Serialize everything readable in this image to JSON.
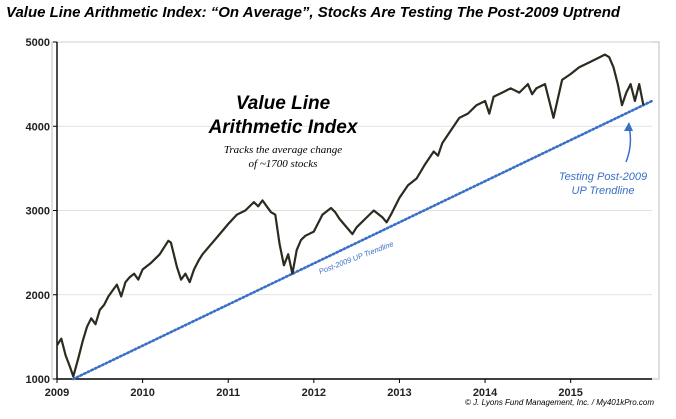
{
  "title": "Value Line Arithmetic Index: “On Average”, Stocks Are Testing The Post-2009 Uptrend",
  "annotations": {
    "main_label_line1": "Value Line",
    "main_label_line2": "Arithmetic Index",
    "sub_label_line1": "Tracks the average change",
    "sub_label_line2": "of ~1700 stocks",
    "test_label_line1": "Testing Post-2009",
    "test_label_line2": "UP Trendline",
    "trendline_label": "Post-2009 UP Trendline",
    "credit": "© J. Lyons Fund Management, Inc. / My401kPro.com"
  },
  "colors": {
    "series": "#2b2b1f",
    "trendline": "#3a6fc7",
    "grid": "#d9d9d9",
    "axis": "#000000"
  },
  "chart_data": {
    "type": "line",
    "title": "Value Line Arithmetic Index: “On Average”, Stocks Are Testing The Post-2009 Uptrend",
    "xlabel": "",
    "ylabel": "",
    "xlim": [
      2009.0,
      2015.95
    ],
    "ylim": [
      1000,
      5000
    ],
    "x_ticks": [
      2009,
      2010,
      2011,
      2012,
      2013,
      2014,
      2015
    ],
    "x_tick_labels": [
      "2009",
      "2010",
      "2011",
      "2012",
      "2013",
      "2014",
      "2015"
    ],
    "y_ticks": [
      1000,
      2000,
      3000,
      4000,
      5000
    ],
    "y_tick_labels": [
      "1000",
      "2000",
      "3000",
      "4000",
      "5000"
    ],
    "grid": "horizontal",
    "series": [
      {
        "name": "",
        "x": [
          2009.0,
          2009.05,
          2009.1,
          2009.15,
          2009.19,
          2009.25,
          2009.3,
          2009.35,
          2009.4,
          2009.45,
          2009.5,
          2009.55,
          2009.6,
          2009.65,
          2009.7,
          2009.75,
          2009.8,
          2009.85,
          2009.9,
          2009.95,
          2010.0,
          2010.1,
          2010.2,
          2010.3,
          2010.33,
          2010.4,
          2010.45,
          2010.5,
          2010.55,
          2010.6,
          2010.65,
          2010.7,
          2010.8,
          2010.9,
          2011.0,
          2011.1,
          2011.2,
          2011.3,
          2011.35,
          2011.4,
          2011.45,
          2011.5,
          2011.55,
          2011.6,
          2011.65,
          2011.7,
          2011.75,
          2011.8,
          2011.85,
          2011.9,
          2012.0,
          2012.1,
          2012.2,
          2012.25,
          2012.3,
          2012.4,
          2012.45,
          2012.5,
          2012.6,
          2012.7,
          2012.8,
          2012.85,
          2012.9,
          2013.0,
          2013.1,
          2013.2,
          2013.3,
          2013.4,
          2013.45,
          2013.5,
          2013.6,
          2013.7,
          2013.8,
          2013.9,
          2014.0,
          2014.05,
          2014.1,
          2014.2,
          2014.3,
          2014.4,
          2014.5,
          2014.55,
          2014.6,
          2014.7,
          2014.75,
          2014.8,
          2014.9,
          2015.0,
          2015.1,
          2015.2,
          2015.3,
          2015.4,
          2015.45,
          2015.5,
          2015.55,
          2015.6,
          2015.65,
          2015.7,
          2015.75,
          2015.8,
          2015.85
        ],
        "values": [
          1400,
          1480,
          1280,
          1150,
          1030,
          1250,
          1450,
          1620,
          1720,
          1650,
          1820,
          1880,
          1980,
          2050,
          2120,
          1980,
          2150,
          2210,
          2250,
          2180,
          2300,
          2380,
          2480,
          2640,
          2620,
          2330,
          2180,
          2250,
          2150,
          2300,
          2400,
          2480,
          2600,
          2720,
          2840,
          2950,
          3000,
          3100,
          3050,
          3120,
          3050,
          2980,
          2950,
          2600,
          2350,
          2480,
          2250,
          2530,
          2650,
          2700,
          2750,
          2950,
          3030,
          2980,
          2900,
          2780,
          2720,
          2800,
          2900,
          3000,
          2920,
          2860,
          2950,
          3150,
          3300,
          3380,
          3550,
          3700,
          3650,
          3800,
          3950,
          4100,
          4150,
          4250,
          4300,
          4150,
          4350,
          4400,
          4450,
          4400,
          4500,
          4380,
          4450,
          4500,
          4300,
          4100,
          4550,
          4620,
          4700,
          4750,
          4800,
          4850,
          4820,
          4700,
          4500,
          4250,
          4400,
          4500,
          4300,
          4500,
          4250
        ]
      }
    ],
    "trendline": {
      "x": [
        2009.19,
        2015.95
      ],
      "values": [
        1000,
        4300
      ]
    }
  }
}
